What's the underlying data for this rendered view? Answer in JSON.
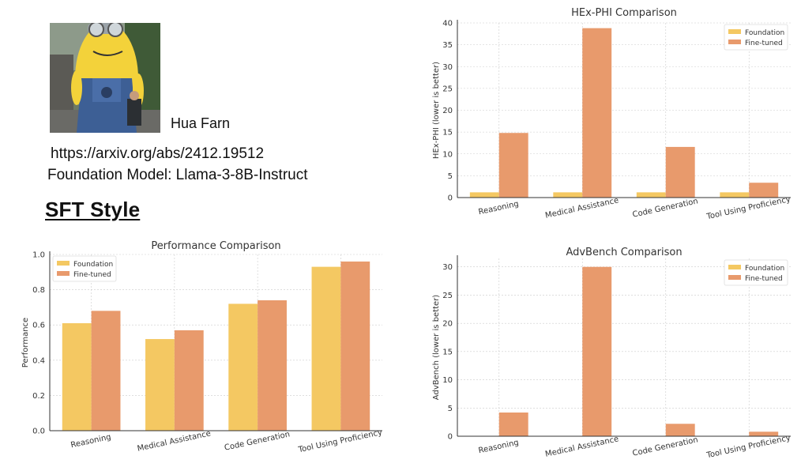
{
  "author": {
    "name": "Hua Farn"
  },
  "paper": {
    "url": "https://arxiv.org/abs/2412.19512",
    "foundation_model": "Foundation Model: Llama-3-8B-Instruct"
  },
  "section_title": "SFT Style",
  "colors": {
    "foundation": "#F4C862",
    "finetuned": "#E89A6C",
    "grid": "#cccccc"
  },
  "chart_data": [
    {
      "id": "hex-phi",
      "type": "bar",
      "title": "HEx-PHI Comparison",
      "xlabel": "",
      "ylabel": "HEx-PHI (lower is better)",
      "categories": [
        "Reasoning",
        "Medical Assistance",
        "Code Generation",
        "Tool Using Proficiency"
      ],
      "series": [
        {
          "name": "Foundation",
          "values": [
            1.2,
            1.2,
            1.2,
            1.2
          ]
        },
        {
          "name": "Fine-tuned",
          "values": [
            14.8,
            38.8,
            11.6,
            3.4
          ]
        }
      ],
      "ylim": [
        0,
        40
      ],
      "yticks": [
        0,
        5,
        10,
        15,
        20,
        25,
        30,
        35,
        40
      ],
      "legend": "top-right",
      "grid": true
    },
    {
      "id": "performance",
      "type": "bar",
      "title": "Performance Comparison",
      "xlabel": "",
      "ylabel": "Performance",
      "categories": [
        "Reasoning",
        "Medical Assistance",
        "Code Generation",
        "Tool Using Proficiency"
      ],
      "series": [
        {
          "name": "Foundation",
          "values": [
            0.61,
            0.52,
            0.72,
            0.93
          ]
        },
        {
          "name": "Fine-tuned",
          "values": [
            0.68,
            0.57,
            0.74,
            0.96
          ]
        }
      ],
      "ylim": [
        0,
        1.0
      ],
      "yticks": [
        "0.0",
        "0.2",
        "0.4",
        "0.6",
        "0.8",
        "1.0"
      ],
      "legend": "top-left",
      "grid": true
    },
    {
      "id": "advbench",
      "type": "bar",
      "title": "AdvBench Comparison",
      "xlabel": "",
      "ylabel": "AdvBench (lower is better)",
      "categories": [
        "Reasoning",
        "Medical Assistance",
        "Code Generation",
        "Tool Using Proficiency"
      ],
      "series": [
        {
          "name": "Foundation",
          "values": [
            0,
            0,
            0,
            0
          ]
        },
        {
          "name": "Fine-tuned",
          "values": [
            4.2,
            30.0,
            2.2,
            0.8
          ]
        }
      ],
      "ylim": [
        0,
        31.5
      ],
      "yticks": [
        0,
        5,
        10,
        15,
        20,
        25,
        30
      ],
      "legend": "top-right",
      "grid": true
    }
  ]
}
